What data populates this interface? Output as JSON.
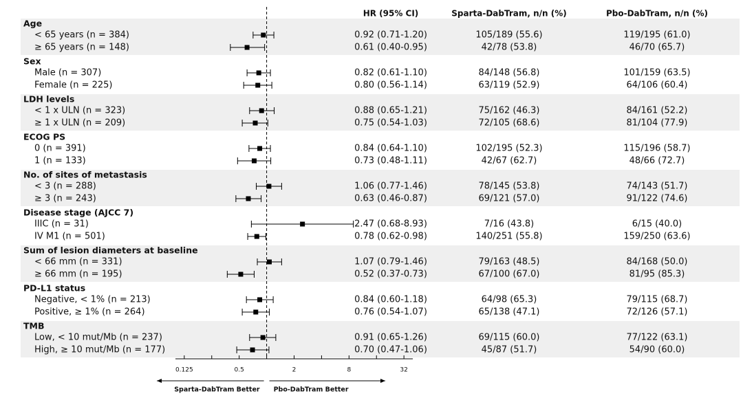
{
  "chart_data": {
    "type": "forest",
    "columns": [
      "HR (95% CI)",
      "Sparta-DabTram, n/n (%)",
      "Pbo-DabTram, n/n (%)"
    ],
    "groups": [
      {
        "name": "Age",
        "rows": [
          {
            "label": "< 65 years (n = 384)",
            "hr": 0.92,
            "lo": 0.71,
            "hi": 1.2,
            "hr_label": "0.92 (0.71-1.20)",
            "arm1": "105/189 (55.6)",
            "arm2": "119/195 (61.0)"
          },
          {
            "label": "≥ 65 years (n = 148)",
            "hr": 0.61,
            "lo": 0.4,
            "hi": 0.95,
            "hr_label": "0.61 (0.40-0.95)",
            "arm1": "42/78 (53.8)",
            "arm2": "46/70 (65.7)"
          }
        ]
      },
      {
        "name": "Sex",
        "rows": [
          {
            "label": "Male (n = 307)",
            "hr": 0.82,
            "lo": 0.61,
            "hi": 1.1,
            "hr_label": "0.82 (0.61-1.10)",
            "arm1": "84/148 (56.8)",
            "arm2": "101/159 (63.5)"
          },
          {
            "label": "Female (n = 225)",
            "hr": 0.8,
            "lo": 0.56,
            "hi": 1.14,
            "hr_label": "0.80 (0.56-1.14)",
            "arm1": "63/119 (52.9)",
            "arm2": "64/106 (60.4)"
          }
        ]
      },
      {
        "name": "LDH levels",
        "rows": [
          {
            "label": "< 1 x ULN (n = 323)",
            "hr": 0.88,
            "lo": 0.65,
            "hi": 1.21,
            "hr_label": "0.88 (0.65-1.21)",
            "arm1": "75/162 (46.3)",
            "arm2": "84/161 (52.2)"
          },
          {
            "label": "≥ 1 x ULN (n = 209)",
            "hr": 0.75,
            "lo": 0.54,
            "hi": 1.03,
            "hr_label": "0.75 (0.54-1.03)",
            "arm1": "72/105 (68.6)",
            "arm2": "81/104 (77.9)"
          }
        ]
      },
      {
        "name": "ECOG PS",
        "rows": [
          {
            "label": "0 (n = 391)",
            "hr": 0.84,
            "lo": 0.64,
            "hi": 1.1,
            "hr_label": "0.84 (0.64-1.10)",
            "arm1": "102/195 (52.3)",
            "arm2": "115/196 (58.7)"
          },
          {
            "label": "1 (n = 133)",
            "hr": 0.73,
            "lo": 0.48,
            "hi": 1.11,
            "hr_label": "0.73 (0.48-1.11)",
            "arm1": "42/67 (62.7)",
            "arm2": "48/66 (72.7)"
          }
        ]
      },
      {
        "name": "No. of sites of metastasis",
        "rows": [
          {
            "label": "< 3 (n = 288)",
            "hr": 1.06,
            "lo": 0.77,
            "hi": 1.46,
            "hr_label": "1.06 (0.77-1.46)",
            "arm1": "78/145 (53.8)",
            "arm2": "74/143 (51.7)"
          },
          {
            "label": "≥ 3 (n = 243)",
            "hr": 0.63,
            "lo": 0.46,
            "hi": 0.87,
            "hr_label": "0.63 (0.46-0.87)",
            "arm1": "69/121 (57.0)",
            "arm2": "91/122 (74.6)"
          }
        ]
      },
      {
        "name": "Disease stage (AJCC 7)",
        "rows": [
          {
            "label": "IIIC (n = 31)",
            "hr": 2.47,
            "lo": 0.68,
            "hi": 8.93,
            "hr_label": "2.47 (0.68-8.93)",
            "arm1": "7/16 (43.8)",
            "arm2": "6/15 (40.0)"
          },
          {
            "label": "IV M1 (n = 501)",
            "hr": 0.78,
            "lo": 0.62,
            "hi": 0.98,
            "hr_label": "0.78 (0.62-0.98)",
            "arm1": "140/251 (55.8)",
            "arm2": "159/250 (63.6)"
          }
        ]
      },
      {
        "name": "Sum of lesion diameters at baseline",
        "rows": [
          {
            "label": "< 66 mm (n = 331)",
            "hr": 1.07,
            "lo": 0.79,
            "hi": 1.46,
            "hr_label": "1.07 (0.79-1.46)",
            "arm1": "79/163 (48.5)",
            "arm2": "84/168 (50.0)"
          },
          {
            "label": "≥ 66 mm (n = 195)",
            "hr": 0.52,
            "lo": 0.37,
            "hi": 0.73,
            "hr_label": "0.52 (0.37-0.73)",
            "arm1": "67/100 (67.0)",
            "arm2": "81/95 (85.3)"
          }
        ]
      },
      {
        "name": "PD-L1 status",
        "rows": [
          {
            "label": "Negative, < 1% (n = 213)",
            "hr": 0.84,
            "lo": 0.6,
            "hi": 1.18,
            "hr_label": "0.84 (0.60-1.18)",
            "arm1": "64/98 (65.3)",
            "arm2": "79/115 (68.7)"
          },
          {
            "label": "Positive, ≥ 1% (n = 264)",
            "hr": 0.76,
            "lo": 0.54,
            "hi": 1.07,
            "hr_label": "0.76 (0.54-1.07)",
            "arm1": "65/138 (47.1)",
            "arm2": "72/126 (57.1)"
          }
        ]
      },
      {
        "name": "TMB",
        "rows": [
          {
            "label": "Low, < 10 mut/Mb (n = 237)",
            "hr": 0.91,
            "lo": 0.65,
            "hi": 1.26,
            "hr_label": "0.91 (0.65-1.26)",
            "arm1": "69/115 (60.0)",
            "arm2": "77/122 (63.1)"
          },
          {
            "label": "High, ≥ 10 mut/Mb (n = 177)",
            "hr": 0.7,
            "lo": 0.47,
            "hi": 1.06,
            "hr_label": "0.70 (0.47-1.06)",
            "arm1": "45/87 (51.7)",
            "arm2": "54/90 (60.0)"
          }
        ]
      }
    ],
    "xlim": [
      0.1,
      40
    ],
    "xlog": true,
    "xticks": [
      0.125,
      0.5,
      2,
      8,
      32
    ],
    "xminorticks": [
      0.25,
      1,
      4,
      16
    ],
    "reference": 1,
    "left_label": "Sparta-DabTram Better",
    "left_color": "#1aa3d9",
    "right_label": "Pbo-DabTram Better",
    "right_color": "#e0201b",
    "band_color": "#efefef"
  }
}
